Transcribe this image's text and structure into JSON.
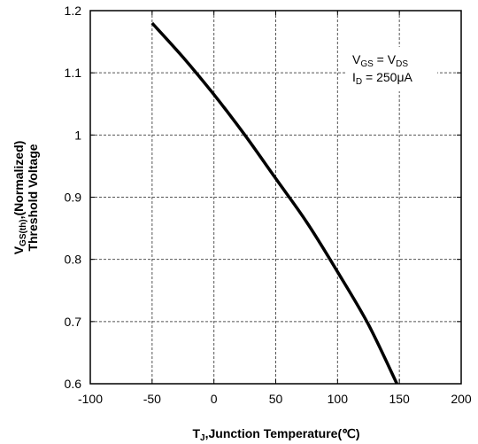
{
  "chart_data": {
    "type": "line",
    "xlabel": {
      "base": "T",
      "sub": "J",
      "rest": ",Junction Temperature(℃)"
    },
    "ylabel": {
      "line1_base": "V",
      "line1_sub": "GS(th)",
      "line1_rest": ",(Normalized)",
      "line2": "Threshold Voltage"
    },
    "xlim": [
      -100,
      200
    ],
    "ylim": [
      0.6,
      1.2
    ],
    "x_ticks": [
      -100,
      -50,
      0,
      50,
      100,
      150,
      200
    ],
    "y_ticks": [
      0.6,
      0.7,
      0.8,
      0.9,
      1,
      1.1,
      1.2
    ],
    "x_tick_labels": [
      "-100",
      "-50",
      "0",
      "50",
      "100",
      "150",
      "200"
    ],
    "y_tick_labels": [
      "0.6",
      "0.7",
      "0.8",
      "0.9",
      "1",
      "1.1",
      "1.2"
    ],
    "grid": true,
    "series": [
      {
        "x": [
          -50,
          -25,
          0,
          25,
          50,
          75,
          100,
          125,
          148
        ],
        "y": [
          1.18,
          1.125,
          1.065,
          1.0,
          0.93,
          0.86,
          0.78,
          0.695,
          0.6
        ]
      }
    ],
    "annotation": {
      "line1": {
        "a_base": "V",
        "a_sub": "GS",
        "eq": " = ",
        "b_base": "V",
        "b_sub": "DS"
      },
      "line2": {
        "base": "I",
        "sub": "D",
        "rest": " = 250μA"
      }
    },
    "line_color": "#000000",
    "grid_color": "#555555"
  }
}
